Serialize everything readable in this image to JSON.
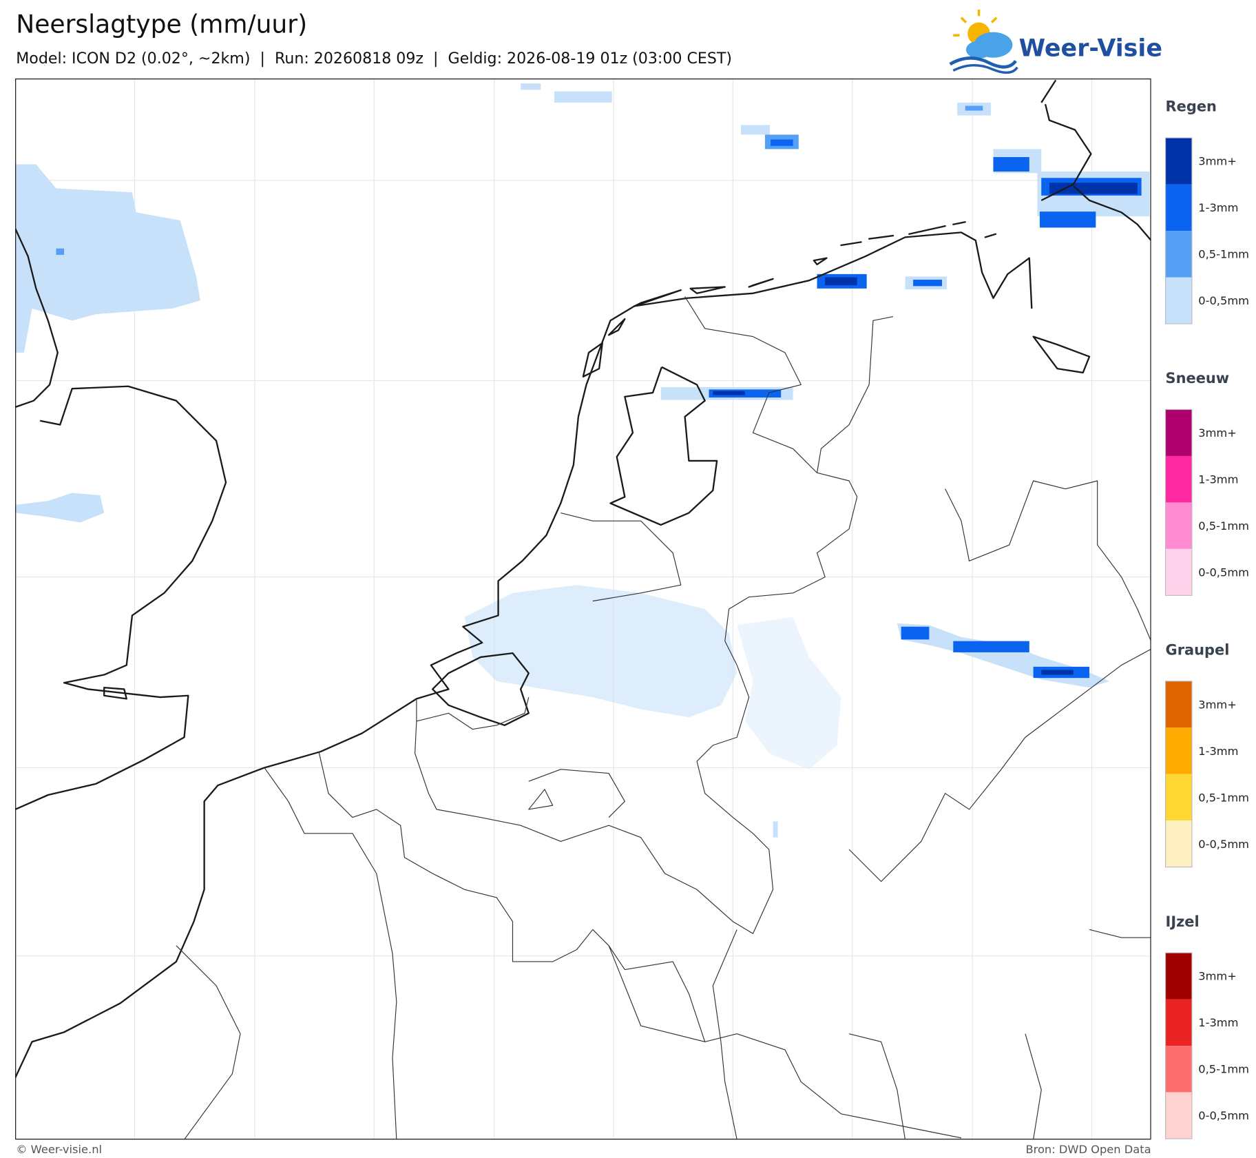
{
  "header": {
    "title": "Neerslagtype (mm/uur)",
    "subtitle": "Model: ICON D2 (0.02°, ~2km)  |  Run: 20260818 09z  |  Geldig: 2026-08-19 01z (03:00 CEST)"
  },
  "logo": {
    "text": "Weer-Visie"
  },
  "legend": {
    "groups": [
      {
        "title": "Regen",
        "items": [
          {
            "label": "3mm+",
            "color": "#0033aa"
          },
          {
            "label": "1-3mm",
            "color": "#0a64f0"
          },
          {
            "label": "0,5-1mm",
            "color": "#55a0f5"
          },
          {
            "label": "0-0,5mm",
            "color": "#c8e1fa"
          }
        ]
      },
      {
        "title": "Sneeuw",
        "items": [
          {
            "label": "3mm+",
            "color": "#b0006e"
          },
          {
            "label": "1-3mm",
            "color": "#ff28a0"
          },
          {
            "label": "0,5-1mm",
            "color": "#ff8cd2"
          },
          {
            "label": "0-0,5mm",
            "color": "#ffd2eb"
          }
        ]
      },
      {
        "title": "Graupel",
        "items": [
          {
            "label": "3mm+",
            "color": "#e06400"
          },
          {
            "label": "1-3mm",
            "color": "#ffaa00"
          },
          {
            "label": "0,5-1mm",
            "color": "#ffd732"
          },
          {
            "label": "0-0,5mm",
            "color": "#fff0c3"
          }
        ]
      },
      {
        "title": "IJzel",
        "items": [
          {
            "label": "3mm+",
            "color": "#a00000"
          },
          {
            "label": "1-3mm",
            "color": "#eb2323"
          },
          {
            "label": "0,5-1mm",
            "color": "#ff6e6e"
          },
          {
            "label": "0-0,5mm",
            "color": "#ffd2d2"
          }
        ]
      }
    ]
  },
  "footer": {
    "left": "© Weer-visie.nl",
    "right": "Bron: DWD Open Data"
  }
}
